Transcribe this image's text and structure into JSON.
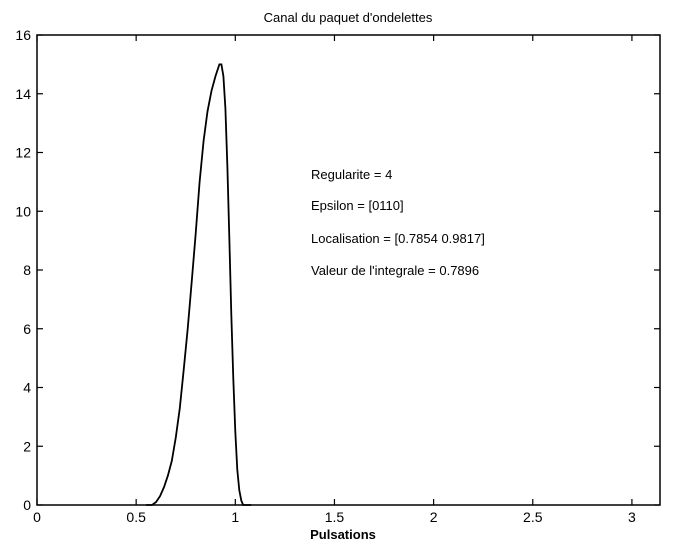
{
  "chart_data": {
    "type": "line",
    "title": "Canal du paquet d'ondelettes",
    "xlabel": "Pulsations",
    "ylabel": "",
    "xlim": [
      0,
      3.14159
    ],
    "ylim": [
      0,
      16
    ],
    "xticks": [
      0,
      0.5,
      1,
      1.5,
      2,
      2.5,
      3
    ],
    "xtick_labels": [
      "0",
      "0.5",
      "1",
      "1.5",
      "2",
      "2.5",
      "3"
    ],
    "yticks": [
      0,
      2,
      4,
      6,
      8,
      10,
      12,
      14,
      16
    ],
    "ytick_labels": [
      "0",
      "2",
      "4",
      "6",
      "8",
      "10",
      "12",
      "14",
      "16"
    ],
    "grid": false,
    "line_color": "#000000",
    "series": [
      {
        "x": [
          0.55,
          0.58,
          0.6,
          0.62,
          0.64,
          0.66,
          0.68,
          0.7,
          0.72,
          0.74,
          0.76,
          0.78,
          0.8,
          0.82,
          0.84,
          0.86,
          0.88,
          0.9,
          0.92,
          0.93,
          0.94,
          0.95,
          0.96,
          0.97,
          0.98,
          0.99,
          1.0,
          1.01,
          1.02,
          1.03,
          1.04,
          1.06,
          1.08
        ],
        "y": [
          0,
          0,
          0.1,
          0.3,
          0.6,
          1.0,
          1.5,
          2.3,
          3.3,
          4.6,
          6.0,
          7.6,
          9.2,
          11.0,
          12.4,
          13.4,
          14.1,
          14.6,
          15.0,
          15.0,
          14.6,
          13.5,
          11.5,
          9.0,
          6.5,
          4.3,
          2.5,
          1.2,
          0.5,
          0.15,
          0,
          0,
          0
        ]
      }
    ],
    "annotations": [
      "Regularite = 4",
      "Epsilon = [0110]",
      "Localisation = [0.7854 0.9817]",
      "Valeur de l'integrale = 0.7896"
    ]
  }
}
